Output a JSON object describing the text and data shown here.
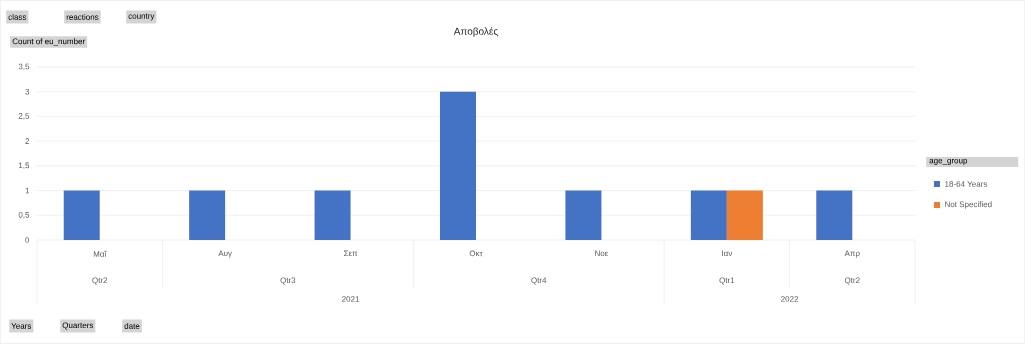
{
  "chart_data": {
    "type": "bar",
    "title": "Αποβολές",
    "ylabel": "Count of eu_number",
    "legend_title": "age_group",
    "categories": [
      "Μαΐ",
      "Αυγ",
      "Σεπ",
      "Οκτ",
      "Νοε",
      "Ιαν",
      "Απρ"
    ],
    "series": [
      {
        "name": "18-64 Years",
        "color": "#4472c4",
        "values": [
          1,
          1,
          1,
          3,
          1,
          1,
          1
        ]
      },
      {
        "name": "Not Specified",
        "color": "#ed7d31",
        "values": [
          null,
          null,
          null,
          null,
          null,
          1,
          null
        ]
      }
    ],
    "ylim": [
      0,
      3.5
    ],
    "yticks": [
      0,
      {
        "value": 0.5,
        "label": "0,5"
      },
      1,
      {
        "value": 1.5,
        "label": "1,5"
      },
      2,
      {
        "value": 2.5,
        "label": "2,5"
      },
      3,
      {
        "value": 3.5,
        "label": "3,5"
      }
    ],
    "grid": "y",
    "legend": "right",
    "annotations": [
      "Qtr2",
      "Qtr3",
      "Qtr4",
      "Qtr1",
      "Qtr2",
      "2021",
      "2022",
      "class",
      "reactions",
      "country",
      "Years",
      "Quarters",
      "date"
    ]
  }
}
